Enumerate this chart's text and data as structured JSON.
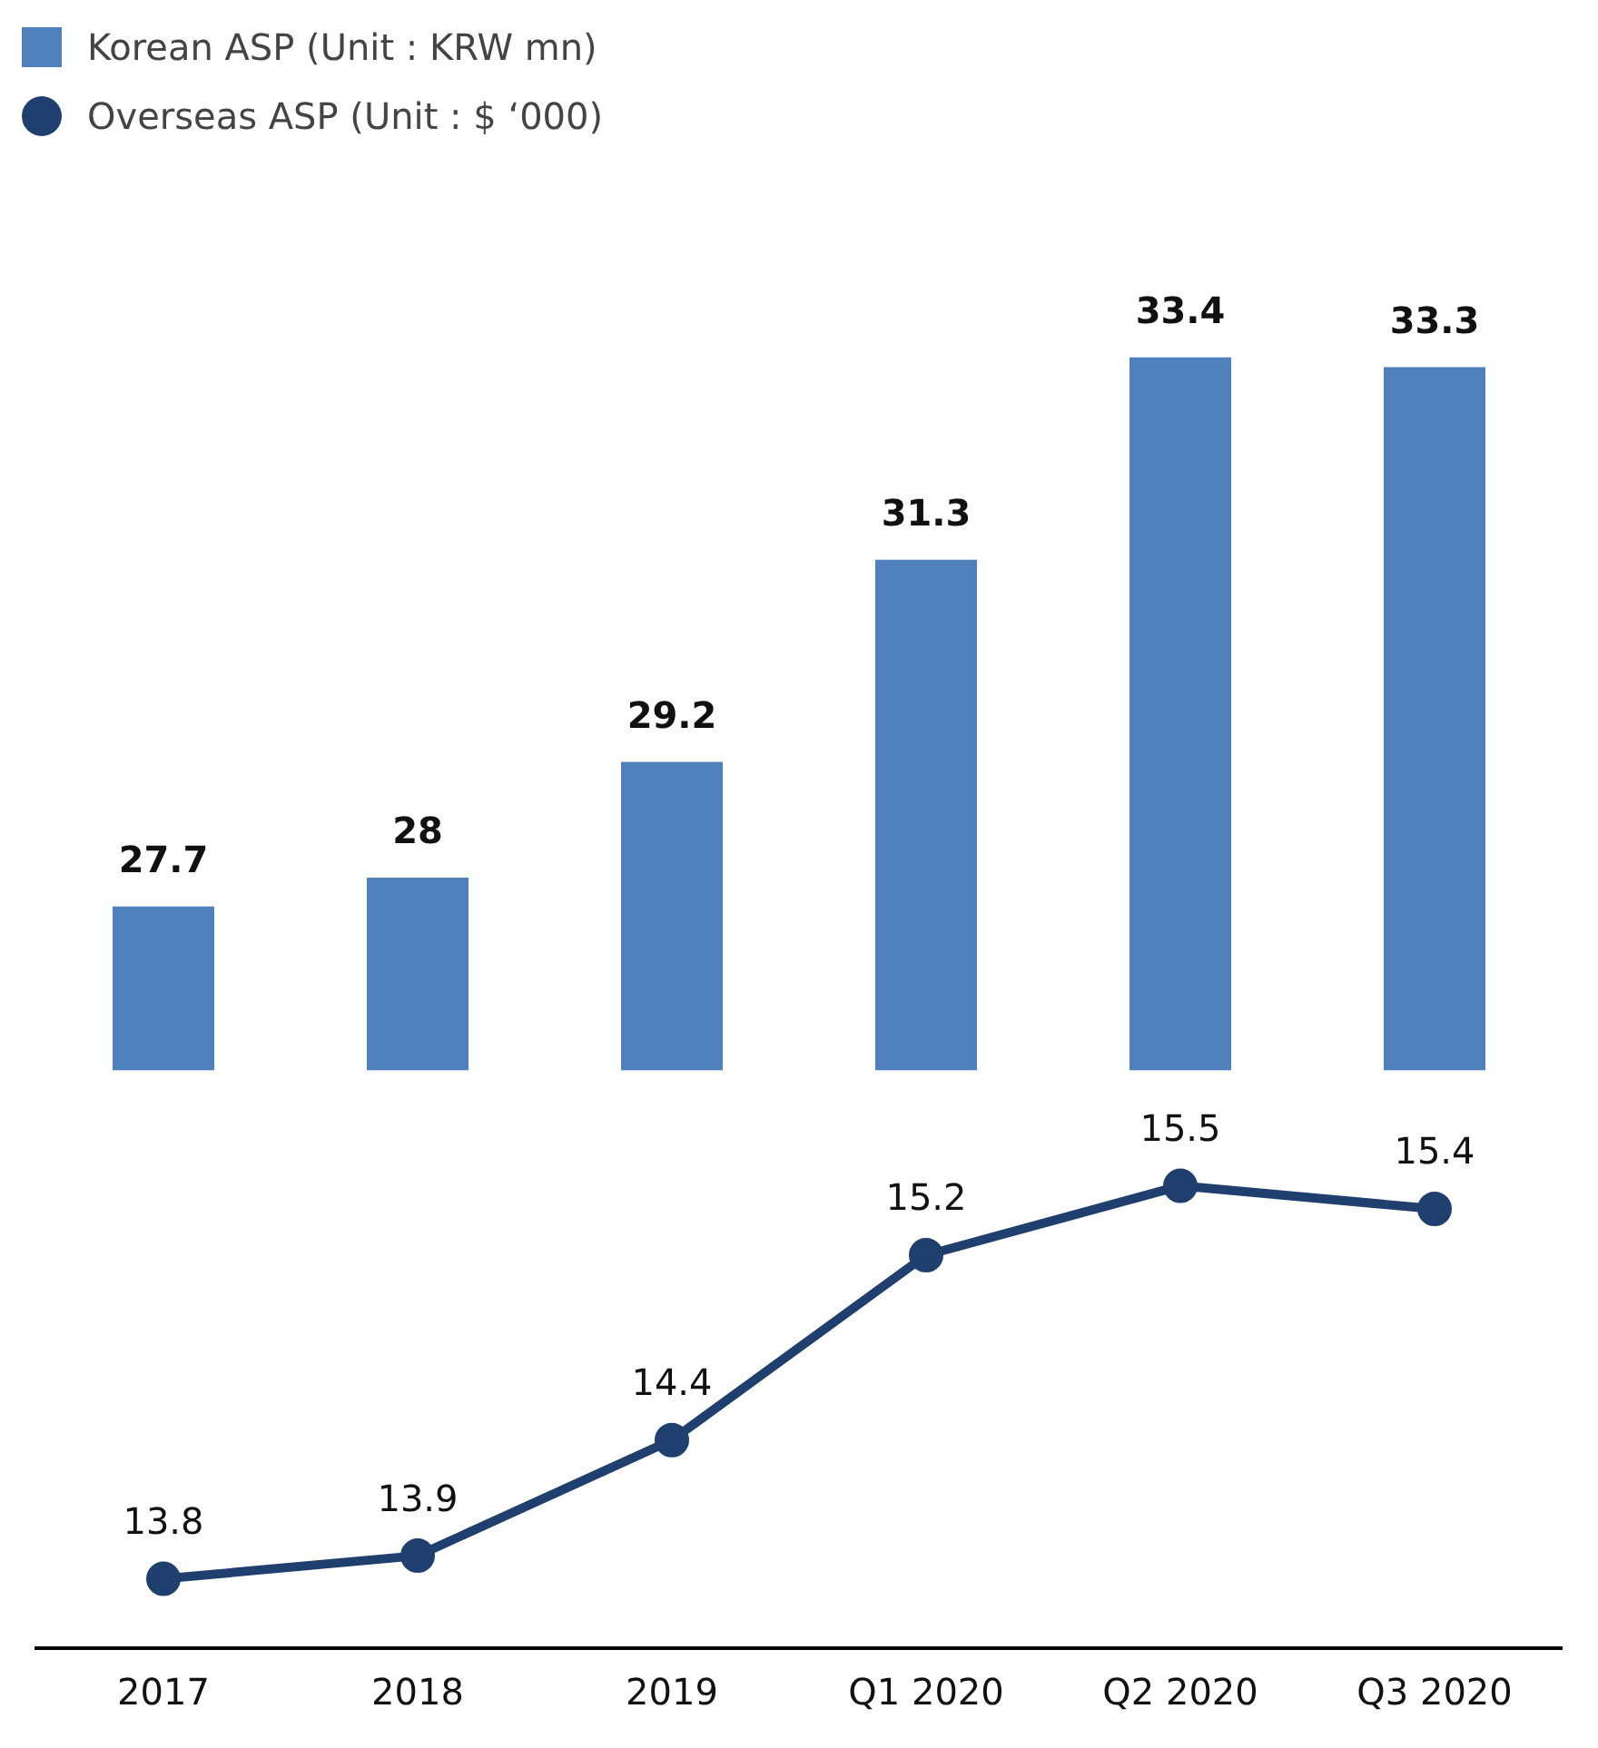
{
  "chart_data": {
    "type": "bar",
    "categories": [
      "2017",
      "2018",
      "2019",
      "Q1 2020",
      "Q2 2020",
      "Q3 2020"
    ],
    "series": [
      {
        "name": "Korean ASP (Unit : KRW mn)",
        "color": "#4f81bd",
        "values": [
          27.7,
          28,
          29.2,
          31.3,
          33.4,
          33.3
        ]
      },
      {
        "name": "Overseas ASP (Unit : $ ‘000)",
        "type": "line",
        "axis": "y2",
        "color": "#1f3f6e",
        "values": [
          13.8,
          13.9,
          14.4,
          15.2,
          15.5,
          15.4
        ]
      }
    ],
    "tick_labels": "x",
    "data_labels": true,
    "legend": "top left",
    "marker": "circle",
    "grid": false
  }
}
